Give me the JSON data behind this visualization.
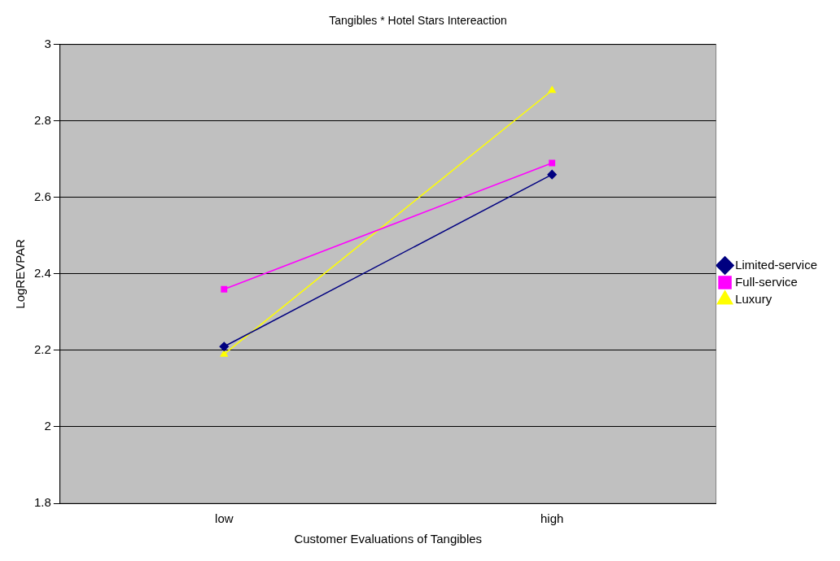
{
  "chart_data": {
    "type": "line",
    "title": "Tangibles * Hotel Stars Intereaction",
    "xlabel": "Customer Evaluations of Tangibles",
    "ylabel": "LogREVPAR",
    "categories": [
      "low",
      "high"
    ],
    "series": [
      {
        "name": "Limited-service",
        "color": "#000080",
        "values": [
          2.21,
          2.66
        ],
        "marker": "diamond"
      },
      {
        "name": "Full-service",
        "color": "#ff00ff",
        "values": [
          2.36,
          2.69
        ],
        "marker": "square"
      },
      {
        "name": "Luxury",
        "color": "#ffff00",
        "values": [
          2.19,
          2.88
        ],
        "marker": "triangle"
      }
    ],
    "ylim": [
      1.8,
      3
    ],
    "yticks": [
      1.8,
      2,
      2.2,
      2.4,
      2.6,
      2.8,
      3
    ],
    "grid": "y",
    "legend": "right",
    "line_style": "solid"
  }
}
